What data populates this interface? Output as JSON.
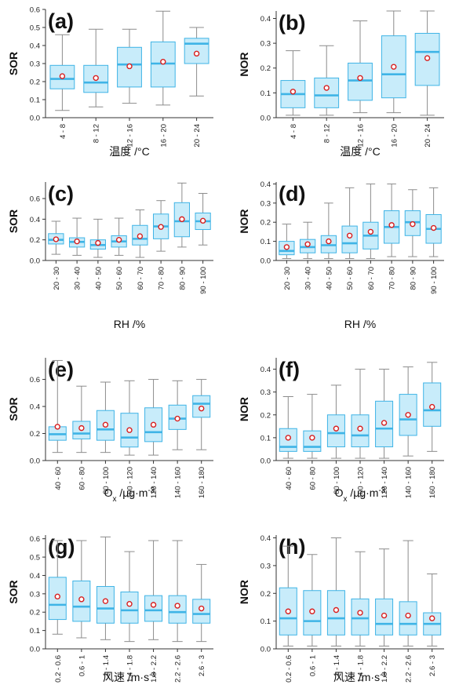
{
  "colors": {
    "box_fill": "#c8ecfa",
    "box_edge": "#3fb4e6",
    "median": "#3fb4e6",
    "whisker": "#8c8c8c",
    "mean": "#d81e1e",
    "axis": "#333333"
  },
  "chart_data": [
    {
      "type": "box",
      "panel_label": "(a)",
      "ylabel": "SOR",
      "xlabel": "温度 /°C",
      "categories": [
        "4 - 8",
        "8 - 12",
        "12 - 16",
        "16 - 20",
        "20 - 24"
      ],
      "ylim": [
        0,
        0.6
      ],
      "yticks": [
        "0.0",
        "0.1",
        "0.2",
        "0.3",
        "0.4",
        "0.5",
        "0.6"
      ],
      "boxes": [
        {
          "min": 0.04,
          "q1": 0.16,
          "median": 0.215,
          "q3": 0.29,
          "max": 0.46,
          "mean": 0.23
        },
        {
          "min": 0.06,
          "q1": 0.14,
          "median": 0.195,
          "q3": 0.29,
          "max": 0.49,
          "mean": 0.22
        },
        {
          "min": 0.08,
          "q1": 0.17,
          "median": 0.295,
          "q3": 0.39,
          "max": 0.49,
          "mean": 0.285
        },
        {
          "min": 0.07,
          "q1": 0.17,
          "median": 0.3,
          "q3": 0.42,
          "max": 0.59,
          "mean": 0.31
        },
        {
          "min": 0.12,
          "q1": 0.3,
          "median": 0.41,
          "q3": 0.44,
          "max": 0.5,
          "mean": 0.355
        }
      ]
    },
    {
      "type": "box",
      "panel_label": "(b)",
      "ylabel": "NOR",
      "xlabel": "温度 /°C",
      "categories": [
        "4 - 8",
        "8 - 12",
        "12 - 16",
        "16 - 20",
        "20 - 24"
      ],
      "ylim": [
        0,
        0.43
      ],
      "yticks": [
        "0.0",
        "0.1",
        "0.2",
        "0.3",
        "0.4"
      ],
      "boxes": [
        {
          "min": 0.01,
          "q1": 0.04,
          "median": 0.095,
          "q3": 0.15,
          "max": 0.27,
          "mean": 0.105
        },
        {
          "min": 0.01,
          "q1": 0.04,
          "median": 0.09,
          "q3": 0.16,
          "max": 0.29,
          "mean": 0.12
        },
        {
          "min": 0.02,
          "q1": 0.07,
          "median": 0.15,
          "q3": 0.22,
          "max": 0.39,
          "mean": 0.16
        },
        {
          "min": 0.02,
          "q1": 0.08,
          "median": 0.175,
          "q3": 0.33,
          "max": 0.43,
          "mean": 0.205
        },
        {
          "min": 0.01,
          "q1": 0.13,
          "median": 0.265,
          "q3": 0.34,
          "max": 0.43,
          "mean": 0.24
        }
      ]
    },
    {
      "type": "box",
      "panel_label": "(c)",
      "ylabel": "SOR",
      "xlabel": "RH /%",
      "categories": [
        "20 - 30",
        "30 - 40",
        "40 - 50",
        "50 - 60",
        "60 - 70",
        "70 - 80",
        "80 - 90",
        "90 - 100"
      ],
      "ylim": [
        0,
        0.76
      ],
      "yticks": [
        "0.0",
        "0.2",
        "0.4",
        "0.6"
      ],
      "boxes": [
        {
          "min": 0.06,
          "q1": 0.16,
          "median": 0.2,
          "q3": 0.26,
          "max": 0.38,
          "mean": 0.205
        },
        {
          "min": 0.05,
          "q1": 0.13,
          "median": 0.18,
          "q3": 0.22,
          "max": 0.41,
          "mean": 0.185
        },
        {
          "min": 0.03,
          "q1": 0.11,
          "median": 0.15,
          "q3": 0.2,
          "max": 0.4,
          "mean": 0.17
        },
        {
          "min": 0.05,
          "q1": 0.13,
          "median": 0.185,
          "q3": 0.24,
          "max": 0.41,
          "mean": 0.2
        },
        {
          "min": 0.03,
          "q1": 0.15,
          "median": 0.21,
          "q3": 0.34,
          "max": 0.49,
          "mean": 0.235
        },
        {
          "min": 0.09,
          "q1": 0.21,
          "median": 0.33,
          "q3": 0.45,
          "max": 0.58,
          "mean": 0.325
        },
        {
          "min": 0.13,
          "q1": 0.23,
          "median": 0.38,
          "q3": 0.56,
          "max": 0.75,
          "mean": 0.4
        },
        {
          "min": 0.15,
          "q1": 0.3,
          "median": 0.38,
          "q3": 0.46,
          "max": 0.65,
          "mean": 0.385
        }
      ]
    },
    {
      "type": "box",
      "panel_label": "(d)",
      "ylabel": "NOR",
      "xlabel": "RH /%",
      "categories": [
        "20 - 30",
        "30 - 40",
        "40 - 50",
        "50 - 60",
        "60 - 70",
        "70 - 80",
        "80 - 90",
        "90 - 100"
      ],
      "ylim": [
        0,
        0.41
      ],
      "yticks": [
        "0.0",
        "0.1",
        "0.2",
        "0.3",
        "0.4"
      ],
      "boxes": [
        {
          "min": 0.01,
          "q1": 0.03,
          "median": 0.05,
          "q3": 0.1,
          "max": 0.19,
          "mean": 0.07
        },
        {
          "min": 0.01,
          "q1": 0.04,
          "median": 0.07,
          "q3": 0.11,
          "max": 0.2,
          "mean": 0.085
        },
        {
          "min": 0.01,
          "q1": 0.04,
          "median": 0.08,
          "q3": 0.13,
          "max": 0.3,
          "mean": 0.1
        },
        {
          "min": 0.01,
          "q1": 0.04,
          "median": 0.09,
          "q3": 0.18,
          "max": 0.38,
          "mean": 0.13
        },
        {
          "min": 0.01,
          "q1": 0.06,
          "median": 0.13,
          "q3": 0.2,
          "max": 0.4,
          "mean": 0.15
        },
        {
          "min": 0.02,
          "q1": 0.09,
          "median": 0.175,
          "q3": 0.26,
          "max": 0.4,
          "mean": 0.185
        },
        {
          "min": 0.02,
          "q1": 0.13,
          "median": 0.2,
          "q3": 0.26,
          "max": 0.37,
          "mean": 0.19
        },
        {
          "min": 0.02,
          "q1": 0.09,
          "median": 0.165,
          "q3": 0.24,
          "max": 0.38,
          "mean": 0.17
        }
      ]
    },
    {
      "type": "box",
      "panel_label": "(e)",
      "ylabel": "SOR",
      "xlabel": "O",
      "xlabel_sub": "x",
      "xlabel_unit": "μg·m",
      "xlabel_sup": "-3",
      "categories": [
        "40 - 60",
        "60 - 80",
        "80 - 100",
        "100 - 120",
        "120 - 140",
        "140 - 160",
        "160 - 180"
      ],
      "ylim": [
        0,
        0.76
      ],
      "yticks": [
        "0.0",
        "0.2",
        "0.4",
        "0.6"
      ],
      "boxes": [
        {
          "min": 0.06,
          "q1": 0.15,
          "median": 0.195,
          "q3": 0.25,
          "max": 0.74,
          "mean": 0.25
        },
        {
          "min": 0.06,
          "q1": 0.16,
          "median": 0.2,
          "q3": 0.29,
          "max": 0.55,
          "mean": 0.24
        },
        {
          "min": 0.06,
          "q1": 0.15,
          "median": 0.23,
          "q3": 0.37,
          "max": 0.58,
          "mean": 0.265
        },
        {
          "min": 0.04,
          "q1": 0.1,
          "median": 0.17,
          "q3": 0.35,
          "max": 0.59,
          "mean": 0.225
        },
        {
          "min": 0.04,
          "q1": 0.14,
          "median": 0.21,
          "q3": 0.39,
          "max": 0.6,
          "mean": 0.265
        },
        {
          "min": 0.08,
          "q1": 0.23,
          "median": 0.31,
          "q3": 0.41,
          "max": 0.59,
          "mean": 0.31
        },
        {
          "min": 0.08,
          "q1": 0.32,
          "median": 0.42,
          "q3": 0.48,
          "max": 0.6,
          "mean": 0.385
        }
      ]
    },
    {
      "type": "box",
      "panel_label": "(f)",
      "ylabel": "NOR",
      "xlabel": "O",
      "xlabel_sub": "x",
      "xlabel_unit": "μg·m",
      "xlabel_sup": "-3",
      "categories": [
        "40 - 60",
        "60 - 80",
        "80 - 100",
        "100 - 120",
        "120 - 140",
        "140 - 160",
        "160 - 180"
      ],
      "ylim": [
        0,
        0.45
      ],
      "yticks": [
        "0.0",
        "0.1",
        "0.2",
        "0.3",
        "0.4"
      ],
      "boxes": [
        {
          "min": 0.01,
          "q1": 0.04,
          "median": 0.06,
          "q3": 0.14,
          "max": 0.28,
          "mean": 0.1
        },
        {
          "min": 0.01,
          "q1": 0.04,
          "median": 0.06,
          "q3": 0.13,
          "max": 0.29,
          "mean": 0.1
        },
        {
          "min": 0.01,
          "q1": 0.06,
          "median": 0.12,
          "q3": 0.2,
          "max": 0.33,
          "mean": 0.14
        },
        {
          "min": 0.01,
          "q1": 0.06,
          "median": 0.11,
          "q3": 0.2,
          "max": 0.4,
          "mean": 0.14
        },
        {
          "min": 0.01,
          "q1": 0.06,
          "median": 0.14,
          "q3": 0.26,
          "max": 0.4,
          "mean": 0.165
        },
        {
          "min": 0.02,
          "q1": 0.11,
          "median": 0.18,
          "q3": 0.29,
          "max": 0.41,
          "mean": 0.2
        },
        {
          "min": 0.04,
          "q1": 0.15,
          "median": 0.22,
          "q3": 0.34,
          "max": 0.43,
          "mean": 0.235
        }
      ]
    },
    {
      "type": "box",
      "panel_label": "(g)",
      "ylabel": "SOR",
      "xlabel": "风速",
      "xlabel_unit": "m·s",
      "xlabel_sup": "-1",
      "categories": [
        "0.2 - 0.6",
        "0.6 - 1",
        "1 - 1.4",
        "1.4 - 1.8",
        "1.8 - 2.2",
        "2.2 - 2.6",
        "2.6 - 3"
      ],
      "ylim": [
        0,
        0.62
      ],
      "yticks": [
        "0.0",
        "0.1",
        "0.2",
        "0.3",
        "0.4",
        "0.5",
        "0.6"
      ],
      "boxes": [
        {
          "min": 0.08,
          "q1": 0.16,
          "median": 0.24,
          "q3": 0.39,
          "max": 0.59,
          "mean": 0.285
        },
        {
          "min": 0.06,
          "q1": 0.15,
          "median": 0.23,
          "q3": 0.37,
          "max": 0.59,
          "mean": 0.27
        },
        {
          "min": 0.05,
          "q1": 0.14,
          "median": 0.22,
          "q3": 0.34,
          "max": 0.61,
          "mean": 0.26
        },
        {
          "min": 0.04,
          "q1": 0.14,
          "median": 0.21,
          "q3": 0.31,
          "max": 0.53,
          "mean": 0.245
        },
        {
          "min": 0.05,
          "q1": 0.15,
          "median": 0.21,
          "q3": 0.29,
          "max": 0.59,
          "mean": 0.24
        },
        {
          "min": 0.04,
          "q1": 0.14,
          "median": 0.2,
          "q3": 0.29,
          "max": 0.59,
          "mean": 0.235
        },
        {
          "min": 0.04,
          "q1": 0.14,
          "median": 0.19,
          "q3": 0.27,
          "max": 0.46,
          "mean": 0.22
        }
      ]
    },
    {
      "type": "box",
      "panel_label": "(h)",
      "ylabel": "NOR",
      "xlabel": "风速",
      "xlabel_unit": "m·s",
      "xlabel_sup": "-1",
      "categories": [
        "0.2 - 0.6",
        "0.6 - 1",
        "1 - 1.4",
        "1.4 - 1.8",
        "1.8 - 2.2",
        "2.2 - 2.6",
        "2.6 - 3"
      ],
      "ylim": [
        0,
        0.41
      ],
      "yticks": [
        "0.0",
        "0.1",
        "0.2",
        "0.3",
        "0.4"
      ],
      "boxes": [
        {
          "min": 0.01,
          "q1": 0.05,
          "median": 0.11,
          "q3": 0.22,
          "max": 0.37,
          "mean": 0.135
        },
        {
          "min": 0.01,
          "q1": 0.05,
          "median": 0.1,
          "q3": 0.21,
          "max": 0.34,
          "mean": 0.135
        },
        {
          "min": 0.01,
          "q1": 0.05,
          "median": 0.11,
          "q3": 0.21,
          "max": 0.4,
          "mean": 0.14
        },
        {
          "min": 0.01,
          "q1": 0.05,
          "median": 0.11,
          "q3": 0.18,
          "max": 0.35,
          "mean": 0.13
        },
        {
          "min": 0.01,
          "q1": 0.05,
          "median": 0.09,
          "q3": 0.18,
          "max": 0.36,
          "mean": 0.12
        },
        {
          "min": 0.01,
          "q1": 0.05,
          "median": 0.09,
          "q3": 0.17,
          "max": 0.39,
          "mean": 0.12
        },
        {
          "min": 0.01,
          "q1": 0.05,
          "median": 0.09,
          "q3": 0.13,
          "max": 0.27,
          "mean": 0.11
        }
      ]
    }
  ]
}
